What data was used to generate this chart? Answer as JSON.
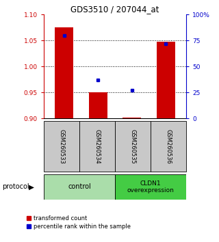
{
  "title": "GDS3510 / 207044_at",
  "samples": [
    "GSM260533",
    "GSM260534",
    "GSM260535",
    "GSM260536"
  ],
  "red_values": [
    1.075,
    0.95,
    0.902,
    1.048
  ],
  "blue_values_pct": [
    80,
    37,
    27,
    72
  ],
  "ylim_left": [
    0.9,
    1.1
  ],
  "ylim_right": [
    0,
    100
  ],
  "yticks_left": [
    0.9,
    0.95,
    1.0,
    1.05,
    1.1
  ],
  "yticks_right": [
    0,
    25,
    50,
    75,
    100
  ],
  "yticklabels_right": [
    "0",
    "25",
    "50",
    "75",
    "100%"
  ],
  "dotted_lines": [
    0.95,
    1.0,
    1.05
  ],
  "bar_bottom": 0.9,
  "bar_color": "#cc0000",
  "blue_color": "#0000cc",
  "group1_label": "control",
  "group2_label": "CLDN1\noverexpression",
  "group1_color": "#aaddaa",
  "group2_color": "#44cc44",
  "protocol_label": "protocol",
  "legend_red": "transformed count",
  "legend_blue": "percentile rank within the sample",
  "bg_sample_color": "#c8c8c8",
  "bar_width": 0.55,
  "fig_width": 3.2,
  "fig_height": 3.54
}
